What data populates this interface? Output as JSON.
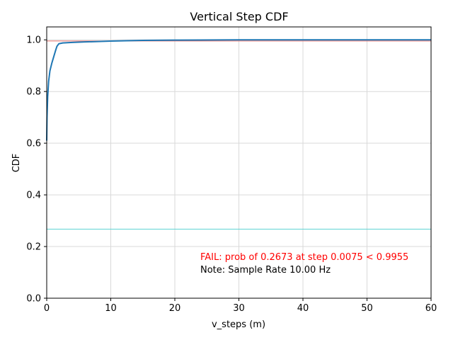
{
  "chart_data": {
    "type": "line",
    "title": "Vertical Step CDF",
    "xlabel": "v_steps (m)",
    "ylabel": "CDF",
    "xlim": [
      0,
      60
    ],
    "ylim": [
      0,
      1.05
    ],
    "x_ticks": [
      "0",
      "10",
      "20",
      "30",
      "40",
      "50",
      "60"
    ],
    "y_ticks": [
      "0.0",
      "0.2",
      "0.4",
      "0.6",
      "0.8",
      "1.0"
    ],
    "grid": true,
    "series": [
      {
        "color": "#1f77b4",
        "x": [
          0,
          0.05,
          0.15,
          0.3,
          0.5,
          0.8,
          1.1,
          1.4,
          1.6,
          1.9,
          2.5,
          4,
          6,
          10,
          15,
          20,
          30,
          40,
          50,
          60
        ],
        "y": [
          0.61,
          0.7,
          0.78,
          0.84,
          0.88,
          0.91,
          0.935,
          0.96,
          0.975,
          0.985,
          0.988,
          0.99,
          0.992,
          0.995,
          0.998,
          0.999,
          1.0,
          1.0,
          1.0,
          1.0
        ]
      }
    ],
    "hlines": [
      {
        "y": 0.9955,
        "color": "#e8706e"
      },
      {
        "y": 0.2673,
        "color": "#5fd3d3"
      }
    ],
    "annotations": [
      {
        "text": "FAIL: prob of 0.2673 at step 0.0075 < 0.9955",
        "color": "#ff0000"
      },
      {
        "text": "Note: Sample Rate 10.00 Hz",
        "color": "#000000"
      }
    ]
  }
}
